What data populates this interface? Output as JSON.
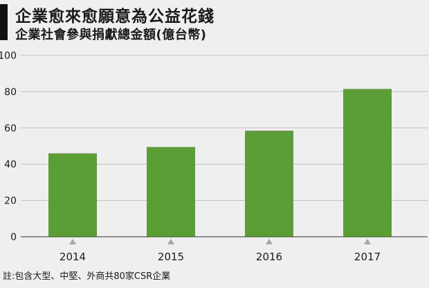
{
  "header": {
    "title": "企業愈來愈願意為公益花錢",
    "subtitle": "企業社會參與捐獻總金額(億台幣)"
  },
  "note": "註:包含大型、中堅、外商共80家CSR企業",
  "colors": {
    "bar": "#5a9e35",
    "grid": "#bfbfbf",
    "axis": "#555555",
    "marker": "#a6a6a6",
    "background": "#efefef"
  },
  "chart_data": {
    "type": "bar",
    "title": "企業愈來愈願意為公益花錢",
    "subtitle": "企業社會參與捐獻總金額(億台幣)",
    "xlabel": "",
    "ylabel": "",
    "categories": [
      "2014",
      "2015",
      "2016",
      "2017"
    ],
    "values": [
      46,
      49.5,
      58.5,
      81.5
    ],
    "ylim": [
      0,
      100
    ],
    "yticks": [
      0,
      20,
      40,
      60,
      80,
      100
    ],
    "grid": true,
    "legend": "none"
  }
}
